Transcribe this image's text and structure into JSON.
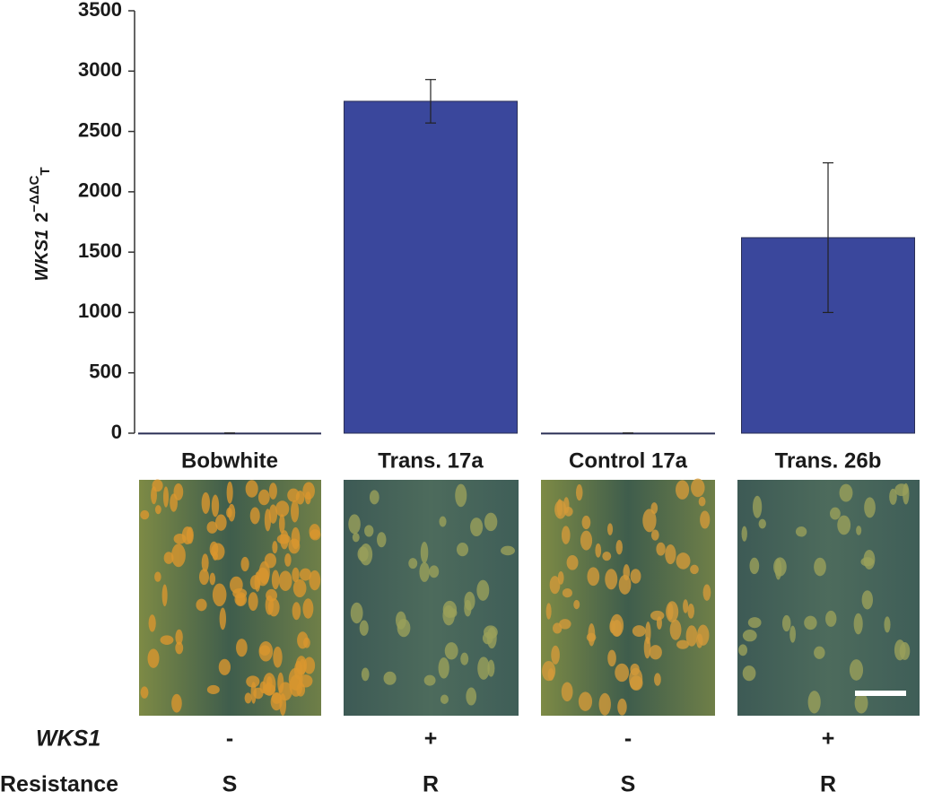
{
  "chart_data": {
    "type": "bar",
    "ylabel": {
      "gene": "WKS1",
      "base": "2",
      "sup": "−ΔΔC",
      "sub": "T"
    },
    "categories": [
      "Bobwhite",
      "Trans. 17a",
      "Control 17a",
      "Trans. 26b"
    ],
    "values": [
      1,
      2750,
      1,
      1620
    ],
    "errors": [
      0,
      180,
      0,
      620
    ],
    "color": "#3a479c",
    "ylim": [
      0,
      3500
    ],
    "yticks": [
      0,
      500,
      1000,
      1500,
      2000,
      2500,
      3000,
      3500
    ],
    "rows": [
      {
        "label": "WKS1",
        "values": [
          "-",
          "+",
          "-",
          "+"
        ]
      },
      {
        "label": "Resistance",
        "values": [
          "S",
          "R",
          "S",
          "R"
        ]
      }
    ]
  }
}
